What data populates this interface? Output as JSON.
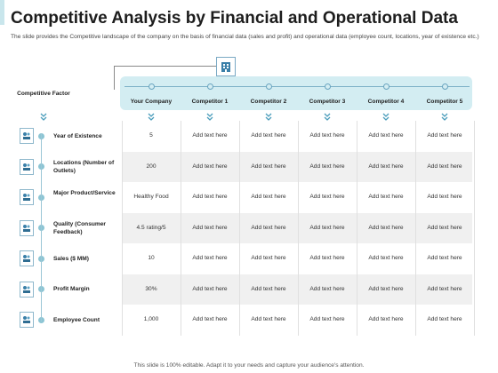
{
  "slide": {
    "title": "Competitive Analysis by Financial and Operational Data",
    "subtitle": "The slide provides the Competitive landscape of the company on the basis of financial data (sales and profit) and operational data (employee count, locations, year of existence etc.)",
    "footer": "This slide is 100% editable. Adapt it to your needs and capture your audience's attention."
  },
  "table": {
    "factor_header": "Competitive Factor",
    "columns": [
      "Your Company",
      "Competitor 1",
      "Competitor 2",
      "Competitor 3",
      "Competitor 4",
      "Competitor 5"
    ],
    "rows": [
      {
        "factor": "Year of Existence",
        "icon": "calendar-icon",
        "values": [
          "5",
          "Add text here",
          "Add text here",
          "Add text here",
          "Add text here",
          "Add text here"
        ]
      },
      {
        "factor": "Locations (Number of Outlets)",
        "icon": "location-icon",
        "values": [
          "200",
          "Add text here",
          "Add text here",
          "Add text here",
          "Add text here",
          "Add text here"
        ]
      },
      {
        "factor": "Major Product/Service",
        "icon": "service-icon",
        "values": [
          "Healthy Food",
          "Add text here",
          "Add text here",
          "Add text here",
          "Add text here",
          "Add text here"
        ]
      },
      {
        "factor": "Quality (Consumer Feedback)",
        "icon": "feedback-icon",
        "values": [
          "4.5 rating/5",
          "Add text here",
          "Add text here",
          "Add text here",
          "Add text here",
          "Add text here"
        ]
      },
      {
        "factor": "Sales ($ MM)",
        "icon": "sales-icon",
        "values": [
          "10",
          "Add text here",
          "Add text here",
          "Add text here",
          "Add text here",
          "Add text here"
        ]
      },
      {
        "factor": "Profit Margin",
        "icon": "profit-icon",
        "values": [
          "30%",
          "Add text here",
          "Add text here",
          "Add text here",
          "Add text here",
          "Add text here"
        ]
      },
      {
        "factor": "Employee Count",
        "icon": "employees-icon",
        "values": [
          "1,000",
          "Add text here",
          "Add text here",
          "Add text here",
          "Add text here",
          "Add text here"
        ]
      }
    ]
  },
  "colors": {
    "accent": "#d3edf2",
    "line": "#7fb2c8",
    "chevron": "#4a9dbb"
  }
}
